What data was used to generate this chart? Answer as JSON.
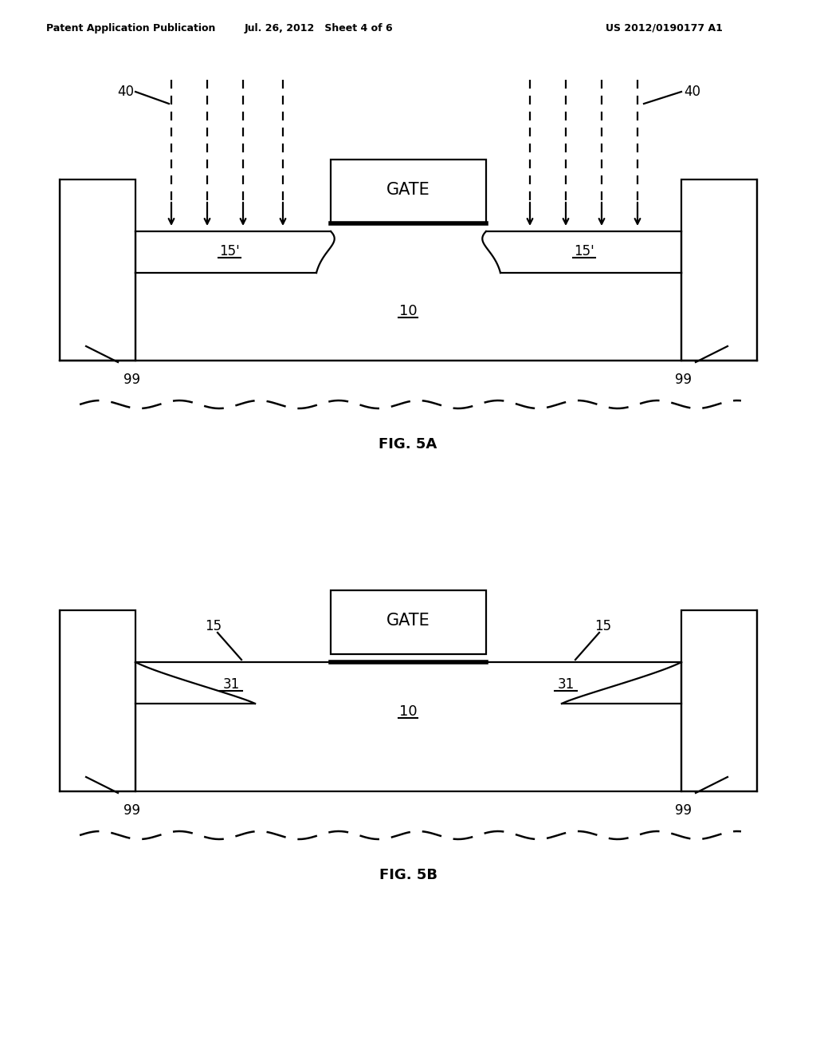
{
  "bg_color": "#ffffff",
  "header_left": "Patent Application Publication",
  "header_mid": "Jul. 26, 2012   Sheet 4 of 6",
  "header_right": "US 2012/0190177 A1",
  "fig5a_caption": "FIG. 5A",
  "fig5b_caption": "FIG. 5B",
  "line_color": "#000000",
  "lw": 1.6,
  "lw_thick": 4.0,
  "lw_thin": 1.0
}
